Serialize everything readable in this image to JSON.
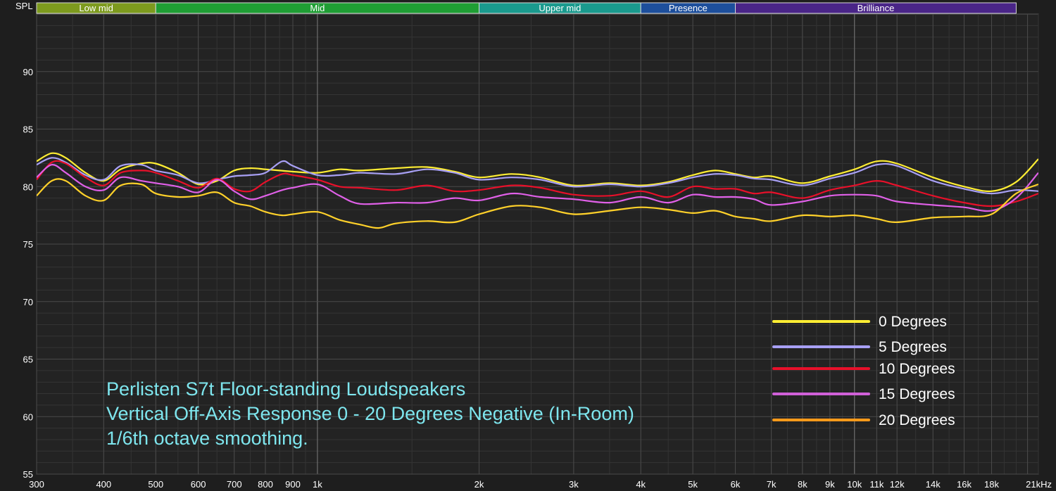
{
  "chart_data": {
    "type": "line",
    "y_axis_label": "SPL",
    "x_unit_suffix": "Hz",
    "xscale": "log",
    "xlim": [
      300,
      22000
    ],
    "ylim": [
      55,
      95
    ],
    "grid": true,
    "legend_position": "bottom-right",
    "x_ticks": [
      {
        "v": 300,
        "t": "300"
      },
      {
        "v": 400,
        "t": "400"
      },
      {
        "v": 500,
        "t": "500"
      },
      {
        "v": 600,
        "t": "600"
      },
      {
        "v": 700,
        "t": "700"
      },
      {
        "v": 800,
        "t": "800"
      },
      {
        "v": 900,
        "t": "900"
      },
      {
        "v": 1000,
        "t": "1k"
      },
      {
        "v": 2000,
        "t": "2k"
      },
      {
        "v": 3000,
        "t": "3k"
      },
      {
        "v": 4000,
        "t": "4k"
      },
      {
        "v": 5000,
        "t": "5k"
      },
      {
        "v": 6000,
        "t": "6k"
      },
      {
        "v": 7000,
        "t": "7k"
      },
      {
        "v": 8000,
        "t": "8k"
      },
      {
        "v": 9000,
        "t": "9k"
      },
      {
        "v": 10000,
        "t": "10k"
      },
      {
        "v": 11000,
        "t": "11k"
      },
      {
        "v": 12000,
        "t": "12k"
      },
      {
        "v": 14000,
        "t": "14k"
      },
      {
        "v": 16000,
        "t": "16k"
      },
      {
        "v": 18000,
        "t": "18k"
      },
      {
        "v": 21000,
        "t": "21kHz"
      }
    ],
    "y_ticks": [
      55,
      60,
      65,
      70,
      75,
      80,
      85,
      90
    ],
    "bands": [
      {
        "label": "Low mid",
        "from": 300,
        "to": 500,
        "color": "#7d9a1e"
      },
      {
        "label": "Mid",
        "from": 500,
        "to": 2000,
        "color": "#1f9e34"
      },
      {
        "label": "Upper mid",
        "from": 2000,
        "to": 4000,
        "color": "#1a9a8e"
      },
      {
        "label": "Presence",
        "from": 4000,
        "to": 6000,
        "color": "#1d4f9c"
      },
      {
        "label": "Brilliance",
        "from": 6000,
        "to": 20000,
        "color": "#4a2588"
      }
    ],
    "series": [
      {
        "name": "0 Degrees",
        "color": "#ffee33",
        "points": [
          [
            300,
            82.2
          ],
          [
            320,
            82.9
          ],
          [
            340,
            82.5
          ],
          [
            370,
            81.2
          ],
          [
            400,
            80.5
          ],
          [
            430,
            81.5
          ],
          [
            470,
            82.0
          ],
          [
            500,
            82.0
          ],
          [
            550,
            81.2
          ],
          [
            600,
            80.2
          ],
          [
            650,
            80.5
          ],
          [
            700,
            81.4
          ],
          [
            750,
            81.6
          ],
          [
            800,
            81.5
          ],
          [
            850,
            81.4
          ],
          [
            900,
            81.3
          ],
          [
            1000,
            81.2
          ],
          [
            1100,
            81.5
          ],
          [
            1200,
            81.4
          ],
          [
            1400,
            81.6
          ],
          [
            1600,
            81.7
          ],
          [
            1800,
            81.3
          ],
          [
            2000,
            80.8
          ],
          [
            2300,
            81.1
          ],
          [
            2600,
            80.8
          ],
          [
            3000,
            80.1
          ],
          [
            3500,
            80.3
          ],
          [
            4000,
            80.1
          ],
          [
            4500,
            80.4
          ],
          [
            5000,
            81.0
          ],
          [
            5500,
            81.4
          ],
          [
            6000,
            81.1
          ],
          [
            6500,
            80.8
          ],
          [
            7000,
            80.9
          ],
          [
            8000,
            80.3
          ],
          [
            9000,
            80.9
          ],
          [
            10000,
            81.5
          ],
          [
            11000,
            82.2
          ],
          [
            12000,
            82.0
          ],
          [
            14000,
            80.8
          ],
          [
            16000,
            80.0
          ],
          [
            18000,
            79.6
          ],
          [
            20000,
            80.4
          ],
          [
            22000,
            82.4
          ]
        ]
      },
      {
        "name": "5 Degrees",
        "color": "#a8a0f5",
        "points": [
          [
            300,
            81.9
          ],
          [
            320,
            82.5
          ],
          [
            340,
            82.1
          ],
          [
            370,
            81.0
          ],
          [
            400,
            80.6
          ],
          [
            430,
            81.8
          ],
          [
            470,
            81.9
          ],
          [
            500,
            81.4
          ],
          [
            550,
            81.0
          ],
          [
            600,
            80.3
          ],
          [
            650,
            80.6
          ],
          [
            700,
            80.9
          ],
          [
            750,
            81.0
          ],
          [
            800,
            81.2
          ],
          [
            860,
            82.2
          ],
          [
            900,
            81.8
          ],
          [
            1000,
            81.0
          ],
          [
            1100,
            81.0
          ],
          [
            1200,
            81.2
          ],
          [
            1400,
            81.1
          ],
          [
            1600,
            81.5
          ],
          [
            1800,
            81.2
          ],
          [
            2000,
            80.6
          ],
          [
            2300,
            80.8
          ],
          [
            2600,
            80.6
          ],
          [
            3000,
            80.0
          ],
          [
            3500,
            80.2
          ],
          [
            4000,
            80.0
          ],
          [
            4500,
            80.3
          ],
          [
            5000,
            80.8
          ],
          [
            5500,
            81.1
          ],
          [
            6000,
            81.0
          ],
          [
            6500,
            80.7
          ],
          [
            7000,
            80.6
          ],
          [
            8000,
            80.1
          ],
          [
            9000,
            80.7
          ],
          [
            10000,
            81.2
          ],
          [
            11000,
            81.9
          ],
          [
            12000,
            81.8
          ],
          [
            14000,
            80.5
          ],
          [
            16000,
            79.8
          ],
          [
            18000,
            79.4
          ],
          [
            20000,
            79.7
          ],
          [
            22000,
            79.6
          ]
        ]
      },
      {
        "name": "10 Degrees",
        "color": "#e8102a",
        "points": [
          [
            300,
            80.6
          ],
          [
            320,
            82.1
          ],
          [
            340,
            82.0
          ],
          [
            370,
            80.8
          ],
          [
            400,
            80.1
          ],
          [
            430,
            81.2
          ],
          [
            470,
            81.4
          ],
          [
            500,
            81.2
          ],
          [
            550,
            80.5
          ],
          [
            600,
            79.9
          ],
          [
            650,
            80.7
          ],
          [
            700,
            79.8
          ],
          [
            750,
            79.6
          ],
          [
            800,
            80.4
          ],
          [
            860,
            81.1
          ],
          [
            900,
            81.0
          ],
          [
            1000,
            80.6
          ],
          [
            1100,
            80.0
          ],
          [
            1200,
            79.9
          ],
          [
            1400,
            79.7
          ],
          [
            1600,
            80.1
          ],
          [
            1800,
            79.6
          ],
          [
            2000,
            79.7
          ],
          [
            2300,
            80.1
          ],
          [
            2600,
            79.9
          ],
          [
            3000,
            79.3
          ],
          [
            3500,
            79.2
          ],
          [
            4000,
            79.6
          ],
          [
            4500,
            79.1
          ],
          [
            5000,
            80.0
          ],
          [
            5500,
            79.8
          ],
          [
            6000,
            79.8
          ],
          [
            6500,
            79.4
          ],
          [
            7000,
            79.5
          ],
          [
            8000,
            79.0
          ],
          [
            9000,
            79.7
          ],
          [
            10000,
            80.1
          ],
          [
            11000,
            80.5
          ],
          [
            12000,
            80.1
          ],
          [
            14000,
            79.2
          ],
          [
            16000,
            78.6
          ],
          [
            18000,
            78.3
          ],
          [
            20000,
            78.7
          ],
          [
            22000,
            79.4
          ]
        ]
      },
      {
        "name": "15 Degrees",
        "color": "#e060e8",
        "points": [
          [
            300,
            80.8
          ],
          [
            320,
            81.9
          ],
          [
            340,
            81.2
          ],
          [
            370,
            80.0
          ],
          [
            400,
            79.7
          ],
          [
            430,
            80.8
          ],
          [
            470,
            80.5
          ],
          [
            500,
            80.3
          ],
          [
            550,
            80.0
          ],
          [
            600,
            79.5
          ],
          [
            650,
            80.6
          ],
          [
            700,
            79.6
          ],
          [
            750,
            78.9
          ],
          [
            800,
            79.2
          ],
          [
            860,
            79.7
          ],
          [
            900,
            79.9
          ],
          [
            1000,
            80.2
          ],
          [
            1100,
            79.2
          ],
          [
            1200,
            78.5
          ],
          [
            1400,
            78.6
          ],
          [
            1600,
            78.6
          ],
          [
            1800,
            79.0
          ],
          [
            2000,
            78.8
          ],
          [
            2300,
            79.4
          ],
          [
            2600,
            79.1
          ],
          [
            3000,
            78.9
          ],
          [
            3500,
            78.6
          ],
          [
            4000,
            79.1
          ],
          [
            4500,
            78.6
          ],
          [
            5000,
            79.3
          ],
          [
            5500,
            79.1
          ],
          [
            6000,
            79.1
          ],
          [
            6500,
            78.9
          ],
          [
            7000,
            78.4
          ],
          [
            8000,
            78.7
          ],
          [
            9000,
            79.2
          ],
          [
            10000,
            79.3
          ],
          [
            11000,
            79.2
          ],
          [
            12000,
            78.7
          ],
          [
            14000,
            78.4
          ],
          [
            16000,
            78.2
          ],
          [
            18000,
            77.9
          ],
          [
            20000,
            79.0
          ],
          [
            22000,
            81.2
          ]
        ]
      },
      {
        "name": "20 Degrees",
        "color": "#ffd12a",
        "points": [
          [
            300,
            79.2
          ],
          [
            320,
            80.5
          ],
          [
            340,
            80.5
          ],
          [
            370,
            79.2
          ],
          [
            400,
            78.8
          ],
          [
            430,
            80.1
          ],
          [
            470,
            80.2
          ],
          [
            500,
            79.4
          ],
          [
            550,
            79.1
          ],
          [
            600,
            79.2
          ],
          [
            650,
            79.5
          ],
          [
            700,
            78.6
          ],
          [
            750,
            78.3
          ],
          [
            800,
            77.8
          ],
          [
            860,
            77.5
          ],
          [
            900,
            77.6
          ],
          [
            1000,
            77.8
          ],
          [
            1100,
            77.1
          ],
          [
            1200,
            76.7
          ],
          [
            1300,
            76.4
          ],
          [
            1400,
            76.8
          ],
          [
            1600,
            77.0
          ],
          [
            1800,
            76.9
          ],
          [
            2000,
            77.6
          ],
          [
            2300,
            78.3
          ],
          [
            2600,
            78.2
          ],
          [
            3000,
            77.6
          ],
          [
            3500,
            77.9
          ],
          [
            4000,
            78.2
          ],
          [
            4500,
            78.0
          ],
          [
            5000,
            77.7
          ],
          [
            5500,
            77.9
          ],
          [
            6000,
            77.4
          ],
          [
            6500,
            77.2
          ],
          [
            7000,
            77.0
          ],
          [
            8000,
            77.5
          ],
          [
            9000,
            77.4
          ],
          [
            10000,
            77.5
          ],
          [
            11000,
            77.2
          ],
          [
            12000,
            76.9
          ],
          [
            14000,
            77.3
          ],
          [
            16000,
            77.4
          ],
          [
            18000,
            77.6
          ],
          [
            20000,
            79.4
          ],
          [
            22000,
            80.2
          ]
        ]
      }
    ],
    "legend": [
      {
        "label": "0 Degrees",
        "color": "#ffee33"
      },
      {
        "label": "5 Degrees",
        "color": "#a8a0f5"
      },
      {
        "label": "10 Degrees",
        "color": "#e8102a"
      },
      {
        "label": "15 Degrees",
        "color": "#d060d8"
      },
      {
        "label": "20 Degrees",
        "color": "#ff9a1a"
      }
    ],
    "annotation_lines": [
      "Perlisten S7t Floor-standing Loudspeakers",
      "Vertical Off-Axis Response 0 - 20 Degrees Negative (In-Room)",
      "1/6th octave smoothing."
    ]
  }
}
